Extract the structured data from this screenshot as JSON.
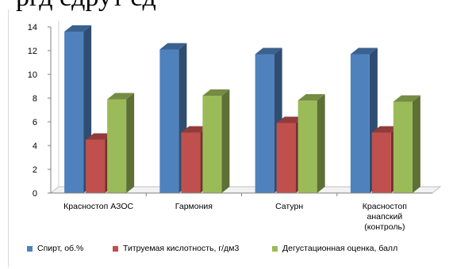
{
  "header_fragment": "ргд  сдрут  сд",
  "chart_data": {
    "type": "bar",
    "categories": [
      "Красностоп АЗОС",
      "Гармония",
      "Сатурн",
      "Красностоп анапский (контроль)"
    ],
    "category_lines": [
      [
        "Красностоп АЗОС"
      ],
      [
        "Гармония"
      ],
      [
        "Сатурн"
      ],
      [
        "Красностоп",
        "анапский",
        "(контроль)"
      ]
    ],
    "series": [
      {
        "name": "Спирт, об.%",
        "values": [
          13.6,
          12.1,
          11.7,
          11.7
        ],
        "color": "#4F81BD"
      },
      {
        "name": "Титруемая кислотность, г/дм3",
        "values": [
          4.5,
          5.1,
          5.9,
          5.1
        ],
        "color": "#C0504D"
      },
      {
        "name": "Дегустационная оценка, балл",
        "values": [
          7.9,
          8.2,
          7.8,
          7.7
        ],
        "color": "#9BBB59"
      }
    ],
    "yticks": [
      "0",
      "2",
      "4",
      "6",
      "8",
      "10",
      "12",
      "14"
    ],
    "ylim": [
      0,
      14
    ],
    "grid": false,
    "legend_position": "bottom",
    "style": "3d-clustered-column"
  }
}
